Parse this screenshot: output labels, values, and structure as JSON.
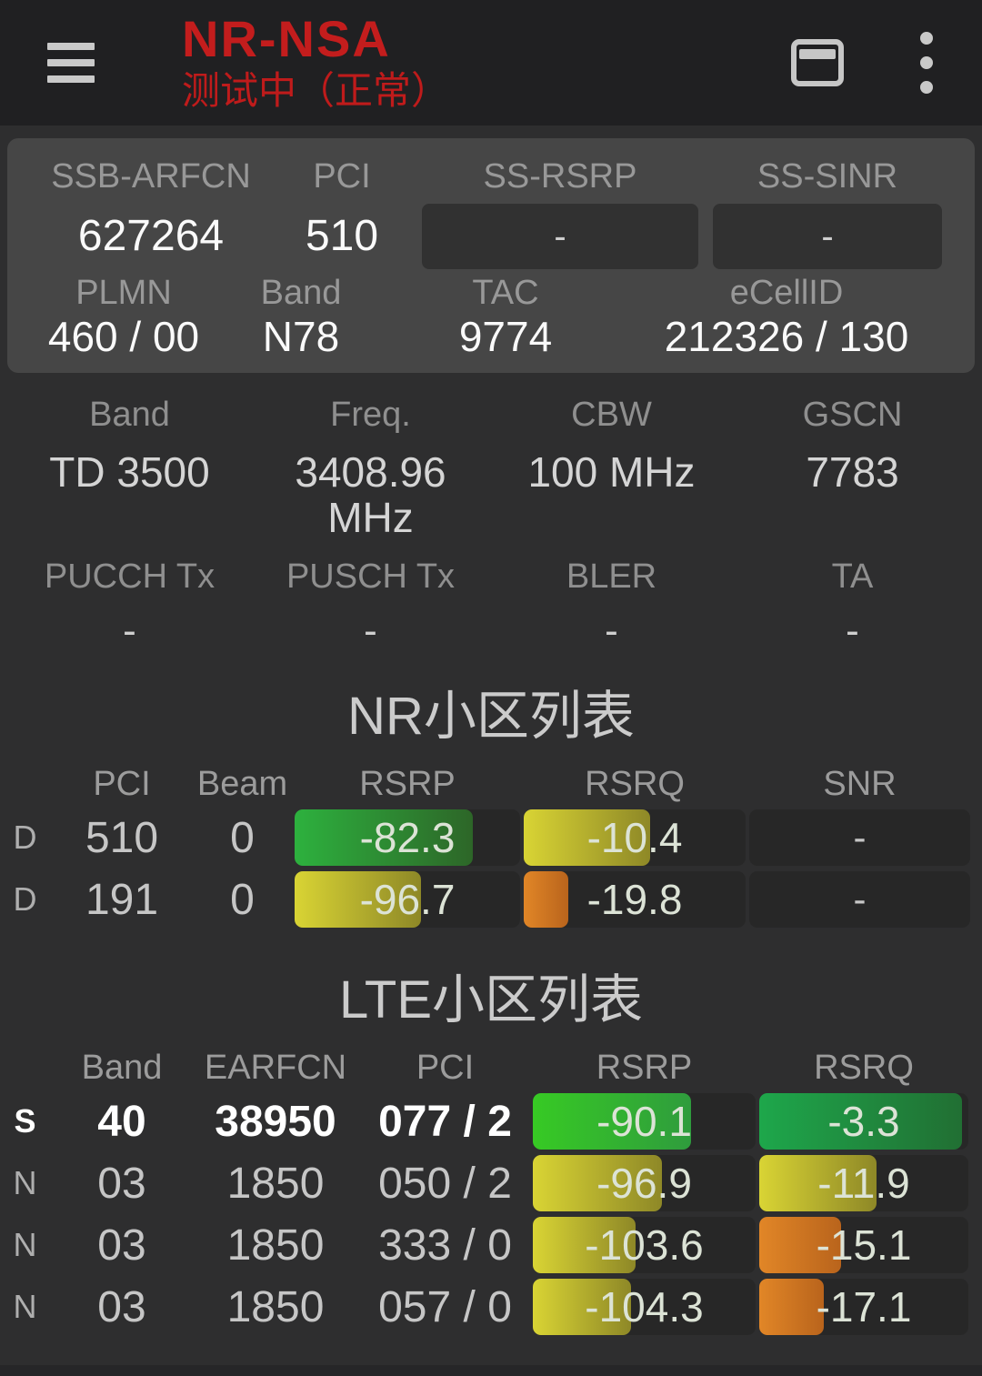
{
  "topbar": {
    "title": "NR-NSA",
    "subtitle": "测试中（正常）",
    "icons": [
      "menu-icon",
      "card-view-icon",
      "more-options-icon"
    ]
  },
  "colors": {
    "accent_red": "#c31d1d",
    "panel_bg": "#464646",
    "page_bg": "#2e2e2f",
    "topbar_bg": "#202022",
    "bar_container": "#272727",
    "bar_green": [
      "#2db13e",
      "#2d6628"
    ],
    "bar_green_bright": [
      "#37ca24",
      "#2f9c3d"
    ],
    "bar_green_dark": [
      "#1ea74b",
      "#216f33"
    ],
    "bar_yellow": [
      "#d9d434",
      "#8e8827"
    ],
    "bar_orange": [
      "#e18627",
      "#b9641c"
    ]
  },
  "nr_panel": {
    "row1": [
      {
        "label": "SSB-ARFCN",
        "value": "627264",
        "boxed": false
      },
      {
        "label": "PCI",
        "value": "510",
        "boxed": false
      },
      {
        "label": "SS-RSRP",
        "value": "-",
        "boxed": true
      },
      {
        "label": "SS-SINR",
        "value": "-",
        "boxed": true
      }
    ],
    "row2": [
      {
        "label": "PLMN",
        "value": "460 / 00"
      },
      {
        "label": "Band",
        "value": "N78"
      },
      {
        "label": "TAC",
        "value": "9774"
      },
      {
        "label": "eCellID",
        "value": "212326 / 130"
      }
    ]
  },
  "radio_info": {
    "row1": [
      {
        "label": "Band",
        "value": "TD 3500"
      },
      {
        "label": "Freq.",
        "value": "3408.96 MHz"
      },
      {
        "label": "CBW",
        "value": "100 MHz"
      },
      {
        "label": "GSCN",
        "value": "7783"
      }
    ],
    "row2": [
      {
        "label": "PUCCH Tx",
        "value": "-"
      },
      {
        "label": "PUSCH Tx",
        "value": "-"
      },
      {
        "label": "BLER",
        "value": "-"
      },
      {
        "label": "TA",
        "value": "-"
      }
    ]
  },
  "nr_cells": {
    "title": "NR小区列表",
    "headers": [
      "PCI",
      "Beam",
      "RSRP",
      "RSRQ",
      "SNR"
    ],
    "rows": [
      {
        "tag": "D",
        "pci": "510",
        "beam": "0",
        "rsrp": {
          "value": "-82.3",
          "pct": 79,
          "color": "green"
        },
        "rsrq": {
          "value": "-10.4",
          "pct": 57,
          "color": "yellow"
        },
        "snr": "-"
      },
      {
        "tag": "D",
        "pci": "191",
        "beam": "0",
        "rsrp": {
          "value": "-96.7",
          "pct": 56,
          "color": "yellow"
        },
        "rsrq": {
          "value": "-19.8",
          "pct": 20,
          "color": "orange"
        },
        "snr": "-"
      }
    ]
  },
  "lte_cells": {
    "title": "LTE小区列表",
    "headers": [
      "Band",
      "EARFCN",
      "PCI",
      "RSRP",
      "RSRQ"
    ],
    "rows": [
      {
        "tag": "S",
        "band": "40",
        "earfcn": "38950",
        "pci": "077 / 2",
        "serving": true,
        "rsrp": {
          "value": "-90.1",
          "pct": 71,
          "color": "green-bright"
        },
        "rsrq": {
          "value": "-3.3",
          "pct": 97,
          "color": "green-dark"
        }
      },
      {
        "tag": "N",
        "band": "03",
        "earfcn": "1850",
        "pci": "050 / 2",
        "serving": false,
        "rsrp": {
          "value": "-96.9",
          "pct": 58,
          "color": "yellow"
        },
        "rsrq": {
          "value": "-11.9",
          "pct": 56,
          "color": "yellow"
        }
      },
      {
        "tag": "N",
        "band": "03",
        "earfcn": "1850",
        "pci": "333 / 0",
        "serving": false,
        "rsrp": {
          "value": "-103.6",
          "pct": 46,
          "color": "yellow"
        },
        "rsrq": {
          "value": "-15.1",
          "pct": 39,
          "color": "orange"
        }
      },
      {
        "tag": "N",
        "band": "03",
        "earfcn": "1850",
        "pci": "057 / 0",
        "serving": false,
        "rsrp": {
          "value": "-104.3",
          "pct": 44,
          "color": "yellow"
        },
        "rsrq": {
          "value": "-17.1",
          "pct": 31,
          "color": "orange"
        }
      }
    ]
  }
}
